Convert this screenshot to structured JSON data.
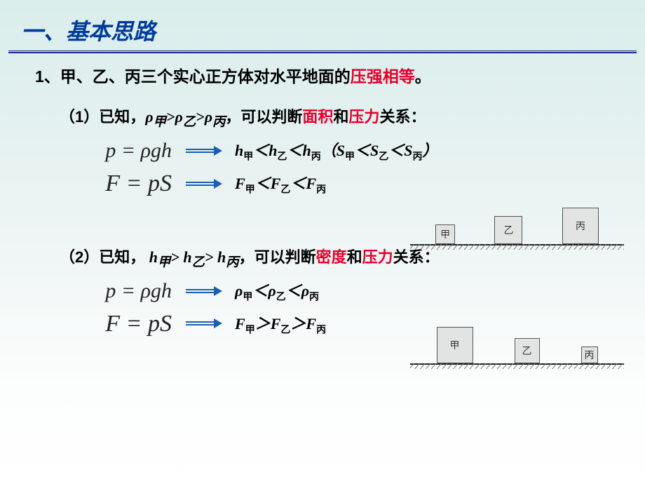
{
  "title": "一、基本思路",
  "q1": {
    "prefix": "1、甲、乙、丙三个实心正方体对水平地面的",
    "k1": "压强相等",
    "suffix": "。"
  },
  "s1": {
    "prefix": "（1）已知，",
    "cond": "ρ<sub>甲</sub>>ρ<sub>乙</sub>>ρ<sub>丙</sub>",
    "mid": "，可以判断",
    "k1": "面积",
    "and": "和",
    "k2": "压力",
    "tail": "关系："
  },
  "f_pgh": "p = ρgh",
  "f_fps": "F = pS",
  "r1a": "h<span class=sub>甲</span>＜h<span class=sub>乙</span>＜h<span class=sub>丙</span>（S<span class=sub>甲</span>＜S<span class=sub>乙</span>＜S<span class=sub>丙</span>）",
  "r1b": "F<span class=sub>甲</span>＜F<span class=sub>乙</span>＜F<span class=sub>丙</span>",
  "s2": {
    "prefix": "（2）已知，",
    "cond": " h<sub>甲</sub>> h<sub>乙</sub>> h<sub>丙</sub>",
    "mid": "，可以判断",
    "k1": "密度",
    "and": "和",
    "k2": "压力",
    "tail": "关系："
  },
  "r2a": "ρ<span class=sub>甲</span>＜ρ<span class=sub>乙</span>＜ρ<span class=sub>丙</span>",
  "r2b": "F<span class=sub>甲</span>＞F<span class=sub>乙</span>＞F<span class=sub>丙</span>",
  "cubes": {
    "labels": [
      "甲",
      "乙",
      "丙"
    ],
    "setA_sizes": [
      28,
      40,
      52
    ],
    "setB_sizes": [
      52,
      36,
      24
    ]
  },
  "colors": {
    "title": "#003b9c",
    "red": "#e4002b",
    "arrow": "#1a5fb4"
  }
}
